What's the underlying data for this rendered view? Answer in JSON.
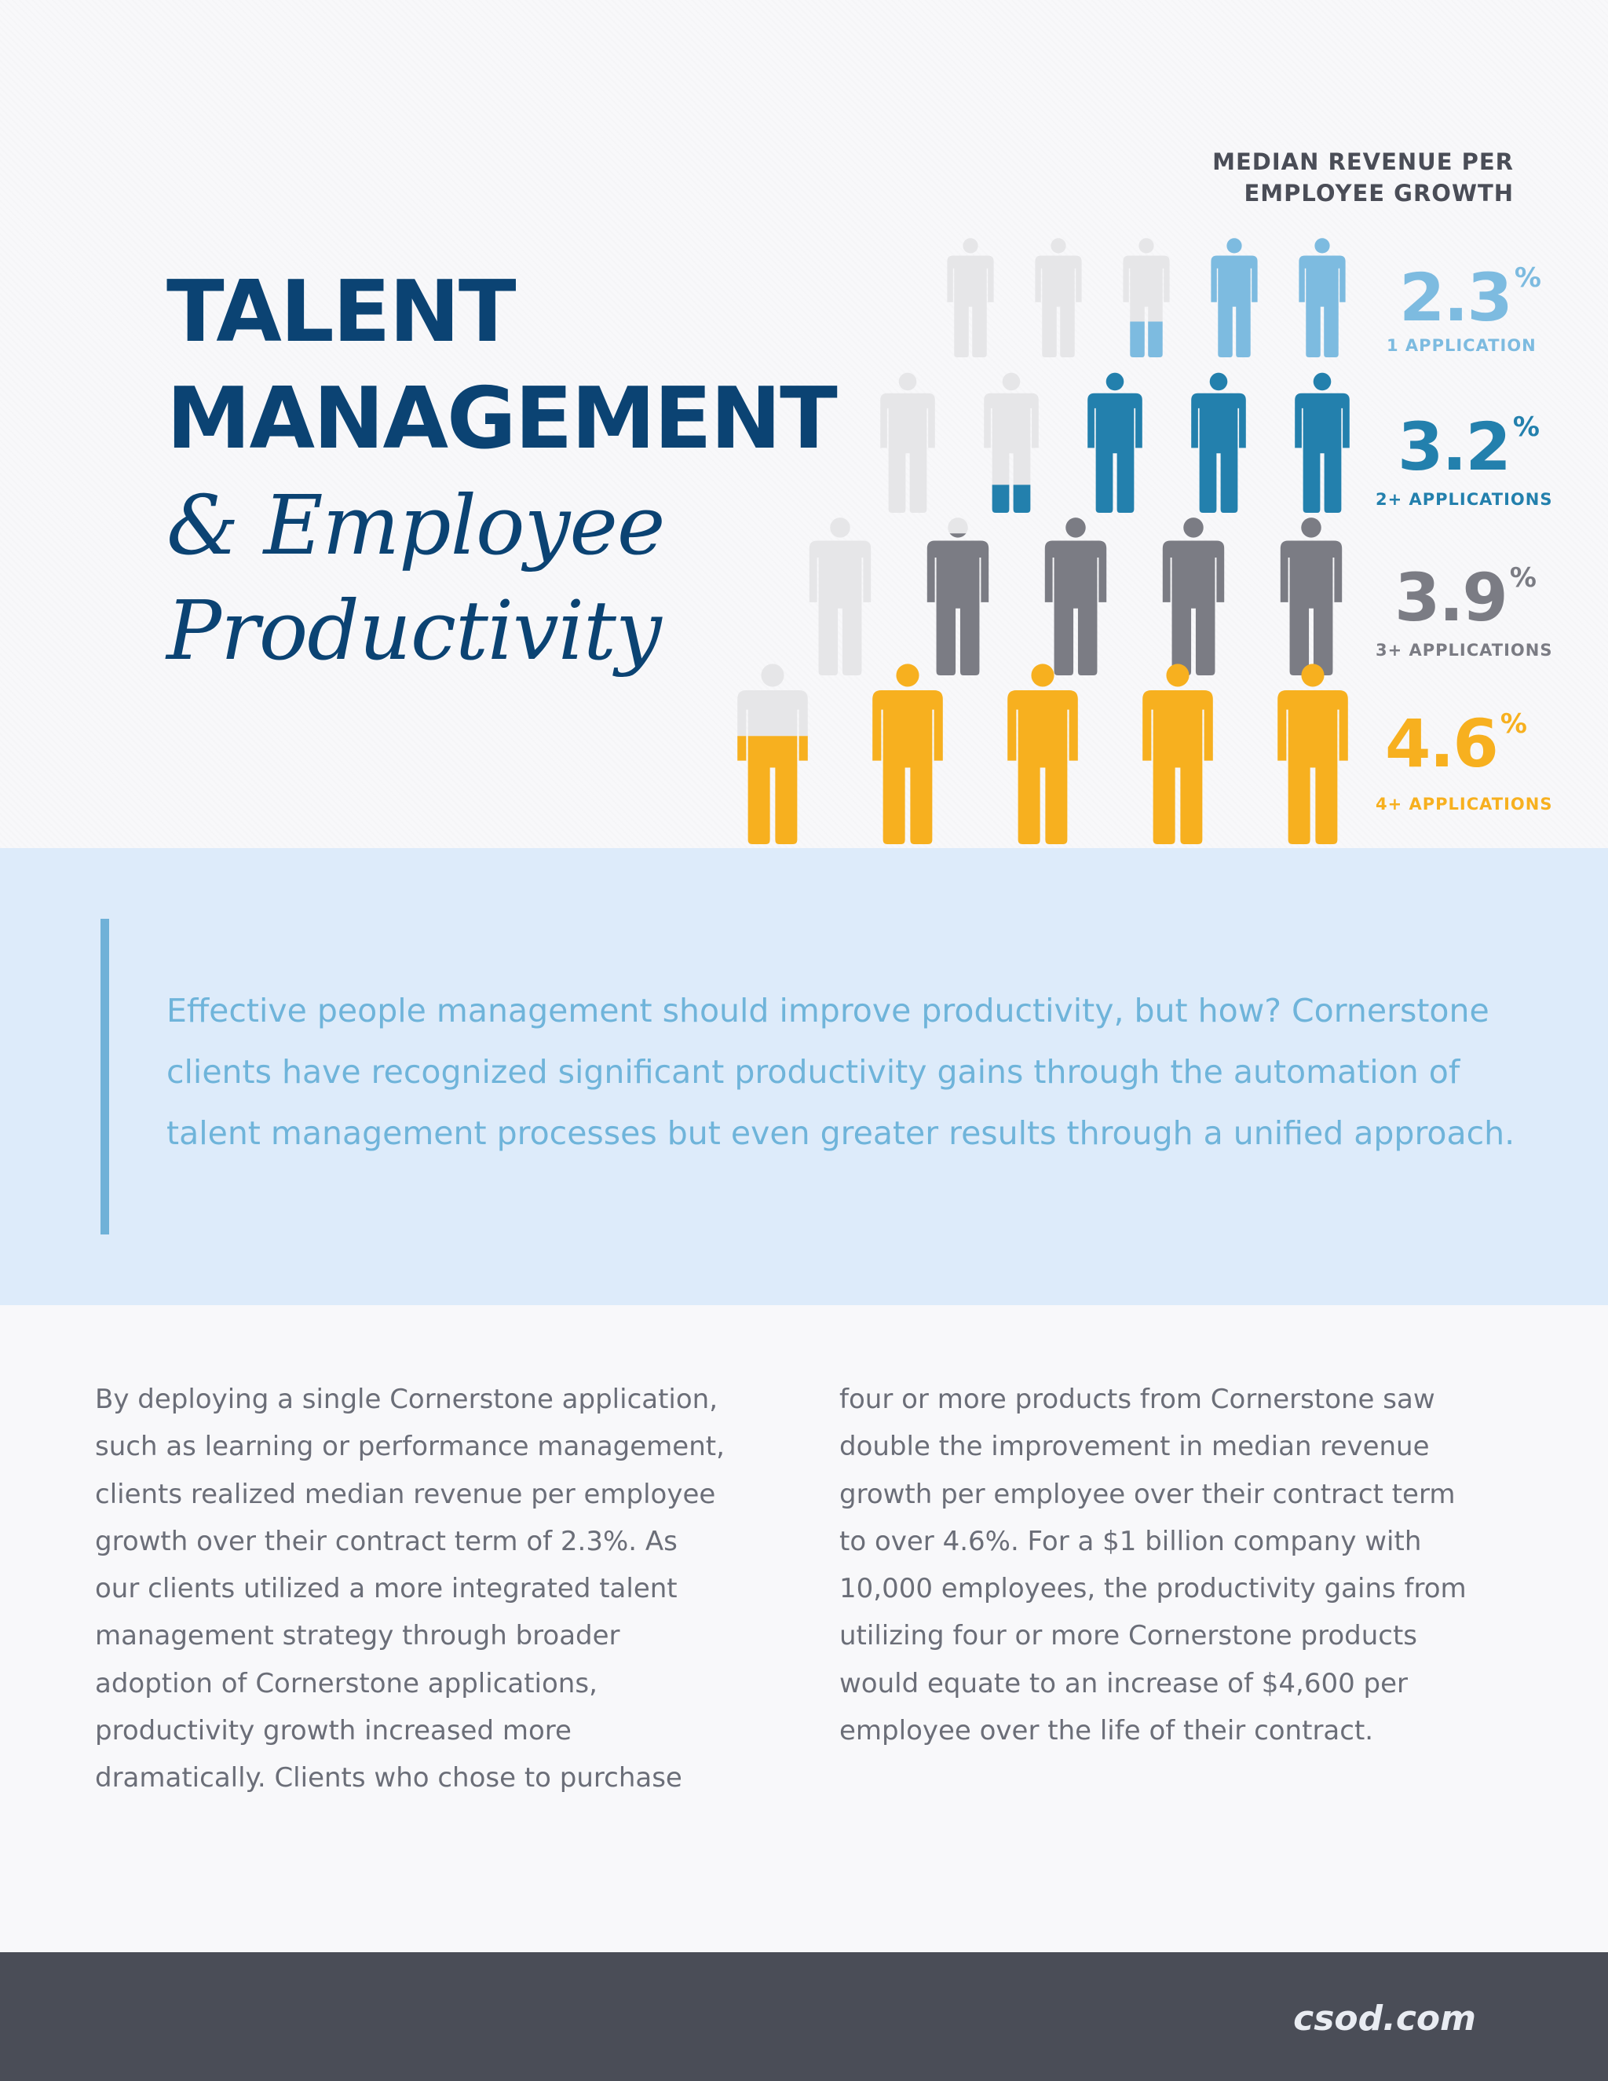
{
  "title": {
    "line1": "TALENT",
    "line2": "MANAGEMENT",
    "line3": "& Employee",
    "line4": "Productivity"
  },
  "chart_data": {
    "type": "pictogram",
    "title": [
      "MEDIAN REVENUE PER",
      "EMPLOYEE GROWTH"
    ],
    "unit": "%",
    "series": [
      {
        "category": "1 APPLICATION",
        "value": 2.3,
        "value_label": "2.3",
        "color": "#7dbbe0",
        "filled_figures": 2.3,
        "total_figures": 5
      },
      {
        "category": "2+ APPLICATIONS",
        "value": 3.2,
        "value_label": "3.2",
        "color": "#2380ad",
        "filled_figures": 3.2,
        "total_figures": 5
      },
      {
        "category": "3+ APPLICATIONS",
        "value": 3.9,
        "value_label": "3.9",
        "color": "#7b7c84",
        "filled_figures": 3.9,
        "total_figures": 5
      },
      {
        "category": "4+ APPLICATIONS",
        "value": 4.6,
        "value_label": "4.6",
        "color": "#f7b01f",
        "filled_figures": 4.6,
        "total_figures": 5
      }
    ],
    "empty_color": "#e6e6e8"
  },
  "quote": {
    "lines": [
      "Effective people management should improve productivity, but how?  Cornerstone",
      "clients have recognized significant productivity gains through the automation of",
      "talent management processes but even greater results through a unified approach."
    ]
  },
  "body": {
    "left": [
      "By deploying a single Cornerstone application,",
      "such as learning or performance management,",
      "clients realized median revenue per employee",
      "growth over their contract term of 2.3%.  As",
      "our clients utilized a more integrated talent",
      "management strategy through broader",
      "adoption of Cornerstone applications,",
      "productivity growth increased more",
      "dramatically.  Clients who chose to purchase"
    ],
    "right": [
      "four or more products from Cornerstone saw",
      "double the improvement in median revenue",
      "growth per employee over their contract term",
      "to over 4.6%.  For a $1 billion company with",
      "10,000 employees, the productivity gains from",
      "utilizing four or more Cornerstone products",
      "would equate to an increase of $4,600 per",
      "employee over the life of their contract."
    ]
  },
  "footer": {
    "site": "csod.com"
  }
}
